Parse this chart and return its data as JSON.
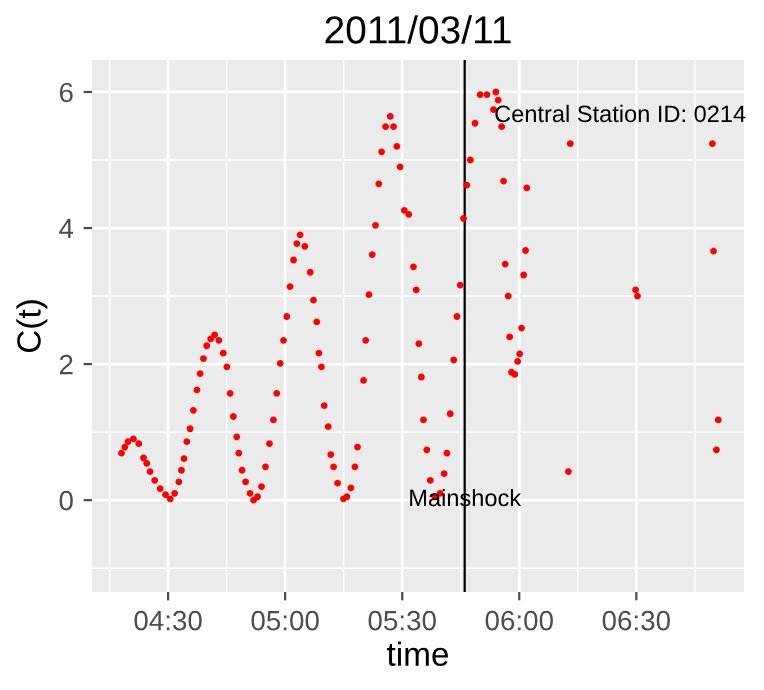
{
  "chart_data": {
    "type": "scatter",
    "title": "2011/03/11",
    "xlabel": "time",
    "ylabel": "C(t)",
    "xlim": [
      4.175,
      6.96
    ],
    "ylim": [
      -1.35,
      6.47
    ],
    "xticks": [
      {
        "value": 4.5,
        "label": "04:30"
      },
      {
        "value": 5.0,
        "label": "05:00"
      },
      {
        "value": 5.5,
        "label": "05:30"
      },
      {
        "value": 6.0,
        "label": "06:00"
      },
      {
        "value": 6.5,
        "label": "06:30"
      }
    ],
    "yticks": [
      0,
      2,
      4,
      6
    ],
    "grid": true,
    "marker": "circle",
    "series": [
      {
        "color": "#ff0000",
        "x": [
          4.301,
          4.315,
          4.329,
          4.352,
          4.375,
          4.395,
          4.409,
          4.423,
          4.443,
          4.466,
          4.489,
          4.509,
          4.528,
          4.546,
          4.557,
          4.568,
          4.58,
          4.594,
          4.608,
          4.623,
          4.637,
          4.651,
          4.665,
          4.682,
          4.699,
          4.717,
          4.736,
          4.751,
          4.765,
          4.779,
          4.793,
          4.802,
          4.816,
          4.831,
          4.85,
          4.865,
          4.882,
          4.899,
          4.916,
          4.933,
          4.95,
          4.964,
          4.979,
          4.993,
          5.007,
          5.021,
          5.036,
          5.05,
          5.064,
          5.084,
          5.107,
          5.121,
          5.135,
          5.144,
          5.155,
          5.167,
          5.184,
          5.195,
          5.207,
          5.224,
          5.249,
          5.264,
          5.281,
          5.298,
          5.309,
          5.335,
          5.344,
          5.358,
          5.372,
          5.386,
          5.4,
          5.412,
          5.429,
          5.449,
          5.463,
          5.477,
          5.491,
          5.509,
          5.528,
          5.548,
          5.56,
          5.571,
          5.582,
          5.591,
          5.605,
          5.62,
          5.639,
          5.662,
          5.679,
          5.691,
          5.705,
          5.72,
          5.734,
          5.748,
          5.762,
          5.776,
          5.791,
          5.811,
          5.833,
          5.862,
          5.89,
          5.9,
          5.91,
          5.925,
          6.218,
          6.825,
          5.933,
          6.032,
          6.027,
          5.94,
          6.019,
          6.83,
          5.953,
          6.497,
          6.505,
          6.01,
          5.959,
          6.002,
          5.993,
          5.967,
          5.981,
          6.85,
          6.842,
          6.21
        ],
        "values": [
          0.69,
          0.78,
          0.86,
          0.9,
          0.83,
          0.62,
          0.54,
          0.42,
          0.29,
          0.17,
          0.08,
          0.02,
          0.1,
          0.27,
          0.44,
          0.61,
          0.86,
          1.05,
          1.32,
          1.62,
          1.86,
          2.08,
          2.27,
          2.37,
          2.43,
          2.35,
          2.16,
          1.96,
          1.57,
          1.23,
          0.93,
          0.69,
          0.44,
          0.27,
          0.1,
          0.0,
          0.05,
          0.2,
          0.49,
          0.83,
          1.18,
          1.57,
          2.01,
          2.35,
          2.7,
          3.14,
          3.53,
          3.77,
          3.9,
          3.73,
          3.35,
          2.94,
          2.62,
          2.16,
          1.96,
          1.39,
          1.08,
          0.67,
          0.49,
          0.25,
          0.02,
          0.05,
          0.18,
          0.49,
          0.78,
          1.76,
          2.35,
          3.02,
          3.61,
          4.04,
          4.65,
          5.12,
          5.49,
          5.64,
          5.49,
          5.2,
          4.9,
          4.26,
          4.2,
          3.43,
          3.09,
          2.3,
          1.81,
          1.18,
          0.74,
          0.29,
          0.05,
          0.1,
          0.39,
          0.69,
          1.27,
          2.06,
          2.7,
          3.16,
          4.14,
          4.63,
          5.0,
          5.54,
          5.96,
          5.96,
          5.74,
          6.0,
          5.88,
          5.49,
          5.24,
          5.24,
          4.69,
          4.59,
          3.67,
          3.47,
          3.31,
          3.66,
          3.0,
          3.09,
          3.0,
          2.53,
          2.4,
          2.15,
          2.04,
          1.88,
          1.85,
          1.18,
          0.74,
          0.42
        ]
      }
    ],
    "ref_lines": [
      {
        "axis": "x",
        "value": 5.767,
        "label": "Mainshock",
        "color": "#000000"
      }
    ],
    "annotations": [
      "Central Station ID: 0214"
    ]
  }
}
